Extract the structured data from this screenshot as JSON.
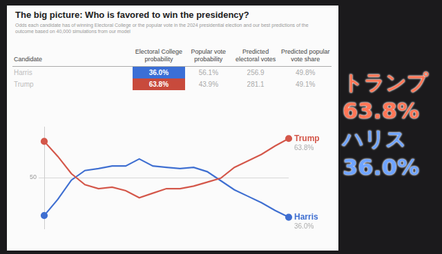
{
  "title": "The big picture: Who is favored to win the presidency?",
  "subtitle": "Odds each candidate has of winning Electoral College or the popular vote in the 2024 presidential election and our best predictions of the outcome based on 40,000 simulations from our model",
  "table": {
    "columns": [
      "Candidate",
      "Electoral College probability",
      "Popular vote probability",
      "Predicted electoral votes",
      "Predicted popular vote share"
    ],
    "rows": [
      {
        "candidate": "Harris",
        "color": "#3b6fd6",
        "cells": [
          "36.0%",
          "56.1%",
          "256.9",
          "49.8%"
        ]
      },
      {
        "candidate": "Trump",
        "color": "#c84a3c",
        "cells": [
          "63.8%",
          "43.9%",
          "281.1",
          "49.1%"
        ]
      }
    ]
  },
  "chart_data": {
    "type": "line",
    "categories": [
      null,
      null,
      null,
      null,
      null,
      null,
      null,
      null,
      null,
      null,
      null,
      null,
      null,
      null,
      null,
      null,
      null,
      null,
      null
    ],
    "series": [
      {
        "name": "Trump",
        "color": "#d4574a",
        "values": [
          62.8,
          57.5,
          51.4,
          47.5,
          46.1,
          46.6,
          45.4,
          42.9,
          44.5,
          46.1,
          46.1,
          47.0,
          48.4,
          49.8,
          53.6,
          55.9,
          58.2,
          61.2,
          63.8
        ],
        "value_labels": [
          null,
          null,
          null,
          null,
          null,
          null,
          null,
          null,
          null,
          null,
          null,
          null,
          null,
          null,
          null,
          null,
          null,
          null,
          "63.8%"
        ]
      },
      {
        "name": "Harris",
        "color": "#3f6fd1",
        "values": [
          36.6,
          42.3,
          49.1,
          52.5,
          53.2,
          54.1,
          54.1,
          56.6,
          54.1,
          53.6,
          53.2,
          53.6,
          52.1,
          48.9,
          45.7,
          43.4,
          41.1,
          38.4,
          36.0
        ],
        "value_labels": [
          null,
          null,
          null,
          null,
          null,
          null,
          null,
          null,
          null,
          null,
          null,
          null,
          null,
          null,
          null,
          null,
          null,
          null,
          "36.0%"
        ]
      }
    ],
    "ylim": [
      32,
      68
    ],
    "yticks": [
      50
    ],
    "grid": true,
    "tick_labels": "y"
  },
  "overlay": [
    {
      "text": "トランプ",
      "color": "#ff7656",
      "value": "63.8%"
    },
    {
      "text": "ハリス",
      "color": "#6fa4ff",
      "value": "36.0%"
    }
  ]
}
